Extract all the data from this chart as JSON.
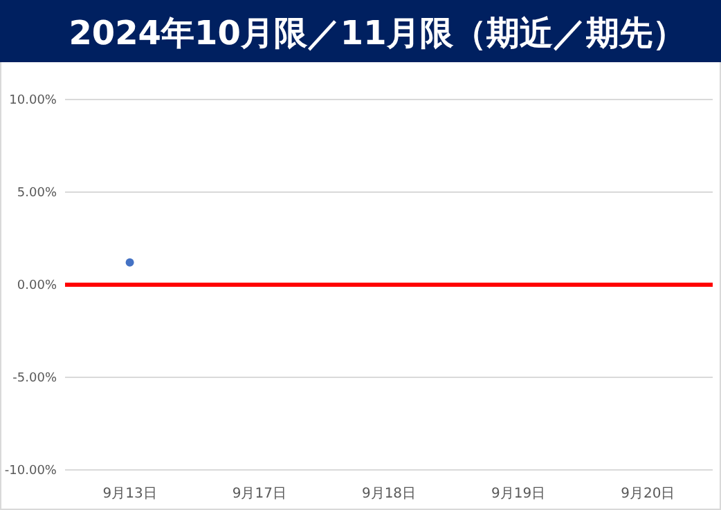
{
  "chart_data": {
    "type": "scatter",
    "title": "2024年10月限／11月限（期近／期先）",
    "categories": [
      "9月13日",
      "9月17日",
      "9月18日",
      "9月19日",
      "9月20日"
    ],
    "series": [
      {
        "color": "#4472c4",
        "values": [
          1.2,
          null,
          null,
          null,
          null
        ]
      }
    ],
    "ylim": [
      -10,
      10
    ],
    "yticks": [
      {
        "value": -10,
        "label": "-10.00%"
      },
      {
        "value": -5,
        "label": "-5.00%"
      },
      {
        "value": 0,
        "label": "0.00%"
      },
      {
        "value": 5,
        "label": "5.00%"
      },
      {
        "value": 10,
        "label": "10.00%"
      }
    ],
    "ref_lines": [
      {
        "axis": "y",
        "value": 0,
        "color": "#ff0000"
      }
    ],
    "grid": "y",
    "marker": "circle"
  }
}
